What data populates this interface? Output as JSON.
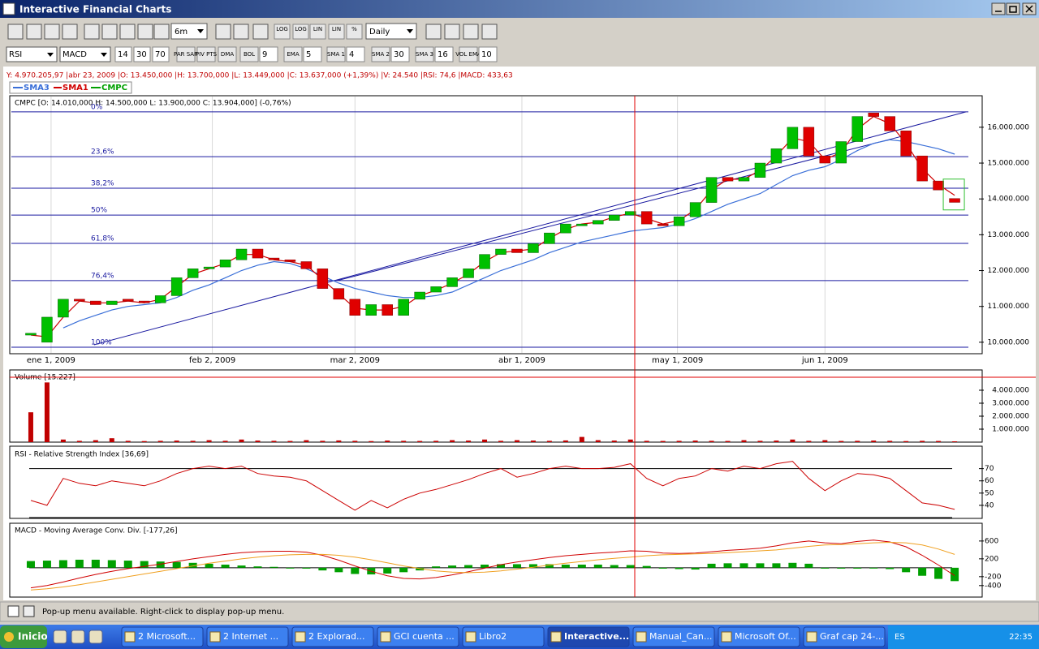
{
  "window": {
    "title": "Interactive Financial Charts"
  },
  "toolbar": {
    "period": "6m",
    "interval": "Daily",
    "scale_buttons": [
      "LOG",
      "LOG",
      "LIN",
      "LIN",
      "%"
    ]
  },
  "indicator_bar": {
    "oscillator_1": "RSI",
    "oscillator_2": "MACD",
    "rsi_params": [
      14,
      30,
      70
    ],
    "overlays": [
      {
        "label": "PAR SAR"
      },
      {
        "label": "PIV PTS"
      },
      {
        "label": "DMA"
      },
      {
        "label": "BOL",
        "param": 9
      },
      {
        "label": "EMA",
        "param": 5
      },
      {
        "label": "SMA 1",
        "param": 4
      },
      {
        "label": "SMA 2",
        "param": 30
      },
      {
        "label": "SMA 3",
        "param": 16
      },
      {
        "label": "VOL EMA",
        "param": 10
      }
    ]
  },
  "info_line": "Y: 4.970.205,97 |abr 23, 2009 |O: 13.450,000 |H: 13.700,000 |L: 13.449,000 |C: 13.637,000 (+1,39%) |V: 24.540 |RSI: 74,6 |MACD: 433,63",
  "chart_data": [
    {
      "type": "candlestick",
      "title": "CMPC [O: 14.010,000  H: 14.500,000  L: 13.900,000  C: 13.904,000] (-0,76%)",
      "name": "CMPC",
      "color": "#00a000",
      "up_color": "#00c000",
      "down_color": "#e00000",
      "xlim": [
        -1.2,
        58.7
      ],
      "xticks": [
        {
          "value": 1.25,
          "label": "ene 1, 2009"
        },
        {
          "value": 11.2,
          "label": "feb 2, 2009"
        },
        {
          "value": 20,
          "label": "mar 2, 2009"
        },
        {
          "value": 30.3,
          "label": "abr 1, 2009"
        },
        {
          "value": 39.9,
          "label": "may 1, 2009"
        },
        {
          "value": 49,
          "label": "jun 1, 2009"
        }
      ],
      "ylim": [
        9680000,
        16880000
      ],
      "yticks": [
        {
          "value": 10000000,
          "label": "10.000.000"
        },
        {
          "value": 11000000,
          "label": "11.000.000"
        },
        {
          "value": 12000000,
          "label": "12.000.000"
        },
        {
          "value": 13000000,
          "label": "13.000.000"
        },
        {
          "value": 14000000,
          "label": "14.000.000"
        },
        {
          "value": 15000000,
          "label": "15.000.000"
        },
        {
          "value": 16000000,
          "label": "16.000.000"
        }
      ],
      "grid": true,
      "open": [
        10200000,
        10000000,
        10700000,
        11200000,
        11150000,
        11050000,
        11200000,
        11150000,
        11100000,
        11300000,
        11800000,
        12050000,
        12100000,
        12300000,
        12600000,
        12350000,
        12300000,
        12250000,
        12050000,
        11500000,
        11200000,
        10750000,
        11050000,
        10750000,
        11200000,
        11400000,
        11550000,
        11800000,
        12050000,
        12450000,
        12600000,
        12500000,
        12750000,
        13050000,
        13250000,
        13300000,
        13400000,
        13550000,
        13650000,
        13300000,
        13250000,
        13500000,
        13900000,
        14600000,
        14500000,
        14600000,
        15000000,
        15400000,
        16000000,
        15200000,
        15000000,
        15600000,
        16400000,
        16300000,
        15900000,
        15200000,
        14500000,
        14010000
      ],
      "close": [
        10250000,
        10700000,
        11200000,
        11150000,
        11050000,
        11150000,
        11150000,
        11100000,
        11300000,
        11800000,
        12050000,
        12100000,
        12300000,
        12600000,
        12350000,
        12300000,
        12250000,
        12050000,
        11500000,
        11200000,
        10750000,
        11050000,
        10750000,
        11200000,
        11400000,
        11550000,
        11800000,
        12050000,
        12450000,
        12600000,
        12500000,
        12750000,
        13050000,
        13300000,
        13300000,
        13400000,
        13550000,
        13650000,
        13300000,
        13250000,
        13500000,
        13900000,
        14600000,
        14500000,
        14600000,
        15000000,
        15400000,
        16000000,
        15200000,
        15000000,
        15600000,
        16300000,
        16300000,
        15900000,
        15200000,
        14500000,
        14250000,
        13904000
      ],
      "series": [
        {
          "name": "SMA3",
          "color": "#3a6fd8",
          "values": [
            null,
            null,
            10400000,
            10600000,
            10750000,
            10900000,
            11000000,
            11050000,
            11100000,
            11250000,
            11450000,
            11600000,
            11800000,
            12000000,
            12150000,
            12250000,
            12200000,
            12050000,
            11850000,
            11650000,
            11500000,
            11400000,
            11300000,
            11250000,
            11250000,
            11300000,
            11400000,
            11600000,
            11800000,
            12000000,
            12150000,
            12300000,
            12500000,
            12650000,
            12800000,
            12900000,
            13000000,
            13100000,
            13150000,
            13200000,
            13300000,
            13450000,
            13650000,
            13850000,
            14000000,
            14150000,
            14400000,
            14650000,
            14800000,
            14900000,
            15100000,
            15350000,
            15550000,
            15650000,
            15600000,
            15500000,
            15400000,
            15250000
          ]
        },
        {
          "name": "SMA1",
          "color": "#d00000",
          "values": [
            10200000,
            10150000,
            10700000,
            11150000,
            11100000,
            11100000,
            11150000,
            11100000,
            11200000,
            11550000,
            11900000,
            12050000,
            12200000,
            12450000,
            12450000,
            12300000,
            12250000,
            12150000,
            11750000,
            11350000,
            10950000,
            10900000,
            10900000,
            11000000,
            11300000,
            11450000,
            11650000,
            11900000,
            12250000,
            12500000,
            12550000,
            12600000,
            12900000,
            13150000,
            13300000,
            13350000,
            13500000,
            13600000,
            13450000,
            13300000,
            13400000,
            13700000,
            14250000,
            14550000,
            14550000,
            14800000,
            15200000,
            15700000,
            15600000,
            15100000,
            15300000,
            15950000,
            16300000,
            16100000,
            15550000,
            14850000,
            14400000,
            14100000
          ]
        }
      ],
      "fibonacci": [
        {
          "label": "0%",
          "value": 16430000
        },
        {
          "label": "23,6%",
          "value": 15180000
        },
        {
          "label": "38,2%",
          "value": 14300000
        },
        {
          "label": "50%",
          "value": 13550000
        },
        {
          "label": "61,8%",
          "value": 12760000
        },
        {
          "label": "76,4%",
          "value": 11720000
        },
        {
          "label": "100%",
          "value": 9860000
        }
      ],
      "fib_color": "#1a1aa0",
      "trendlines": [
        {
          "x": [
            3.9,
            57.7
          ],
          "y": [
            9930000,
            16430000
          ]
        },
        {
          "x": [
            18.9,
            54.2
          ],
          "y": [
            11720000,
            15800000
          ]
        }
      ]
    },
    {
      "type": "bar",
      "title": "Volume [15.227]",
      "color": "#c00000",
      "ylim": [
        0,
        5500000
      ],
      "yticks": [
        {
          "value": 1000000,
          "label": "1.000.000"
        },
        {
          "value": 2000000,
          "label": "2.000.000"
        },
        {
          "value": 3000000,
          "label": "3.000.000"
        },
        {
          "value": 4000000,
          "label": "4.000.000"
        }
      ],
      "values": [
        2300000,
        4600000,
        200000,
        100000,
        150000,
        300000,
        100000,
        80000,
        100000,
        120000,
        100000,
        150000,
        100000,
        200000,
        120000,
        100000,
        90000,
        150000,
        100000,
        130000,
        100000,
        80000,
        120000,
        100000,
        90000,
        100000,
        150000,
        120000,
        200000,
        100000,
        150000,
        120000,
        100000,
        130000,
        400000,
        150000,
        120000,
        200000,
        100000,
        90000,
        100000,
        120000,
        100000,
        90000,
        150000,
        100000,
        120000,
        200000,
        100000,
        150000,
        90000,
        100000,
        120000,
        100000,
        80000,
        100000,
        90000,
        15227
      ]
    },
    {
      "type": "line",
      "title": "RSI - Relative Strength Index [36,69]",
      "color": "#cc0000",
      "ylim": [
        30,
        87
      ],
      "yticks": [
        40,
        50,
        60,
        70
      ],
      "levels": [
        70,
        30
      ],
      "values": [
        44,
        40,
        62,
        58,
        56,
        60,
        58,
        56,
        60,
        66,
        70,
        72,
        70,
        72,
        66,
        64,
        63,
        60,
        52,
        44,
        36,
        44,
        38,
        45,
        50,
        53,
        57,
        61,
        66,
        70,
        63,
        66,
        70,
        72,
        70,
        70,
        71,
        74,
        62,
        56,
        62,
        64,
        70,
        68,
        72,
        70,
        74,
        76,
        62,
        52,
        60,
        66,
        65,
        62,
        52,
        42,
        40,
        36.69
      ]
    },
    {
      "type": "macd",
      "title": "MACD - Moving Average Conv. Div. [-177,26]",
      "ylim": [
        -640,
        980
      ],
      "yticks": [
        -400,
        -200,
        200,
        600
      ],
      "series": [
        {
          "color": "#d00000",
          "values": [
            -450,
            -400,
            -320,
            -230,
            -150,
            -80,
            -20,
            30,
            80,
            140,
            200,
            250,
            300,
            340,
            360,
            370,
            370,
            350,
            280,
            170,
            40,
            -80,
            -180,
            -240,
            -250,
            -220,
            -160,
            -90,
            -10,
            70,
            130,
            180,
            230,
            270,
            300,
            330,
            350,
            380,
            370,
            330,
            320,
            330,
            360,
            390,
            410,
            440,
            490,
            560,
            600,
            560,
            540,
            590,
            620,
            580,
            470,
            280,
            60,
            -177.26
          ]
        },
        {
          "color": "#f0a020",
          "values": [
            -500,
            -470,
            -430,
            -380,
            -320,
            -260,
            -200,
            -140,
            -80,
            -20,
            40,
            100,
            150,
            200,
            240,
            270,
            290,
            300,
            300,
            280,
            240,
            180,
            110,
            40,
            -20,
            -70,
            -100,
            -110,
            -100,
            -70,
            -30,
            10,
            60,
            100,
            140,
            180,
            210,
            240,
            270,
            290,
            300,
            310,
            320,
            340,
            360,
            380,
            400,
            440,
            480,
            510,
            520,
            540,
            560,
            570,
            560,
            510,
            420,
            300
          ]
        }
      ],
      "histogram": {
        "color": "#00a000",
        "values": [
          150,
          160,
          170,
          180,
          180,
          170,
          160,
          150,
          140,
          130,
          110,
          90,
          70,
          50,
          30,
          20,
          0,
          -20,
          -60,
          -100,
          -140,
          -150,
          -130,
          -100,
          -60,
          30,
          50,
          60,
          70,
          80,
          80,
          80,
          80,
          70,
          70,
          70,
          60,
          60,
          40,
          -20,
          -30,
          -40,
          90,
          100,
          100,
          100,
          100,
          110,
          90,
          -20,
          -20,
          -20,
          -10,
          -30,
          -100,
          -180,
          -250,
          -300
        ]
      }
    }
  ],
  "status_bar": {
    "text": "Pop-up menu available. Right-click to display pop-up menu."
  },
  "taskbar": {
    "start": "Inicio",
    "windows": [
      "2 Microsoft...",
      "2 Internet ...",
      "2 Explorad...",
      "GCI cuenta ...",
      "Libro2",
      "Interactive...",
      "Manual_Can...",
      "Microsoft Of...",
      "Graf cap 24-..."
    ],
    "language": "ES",
    "clock": "22:35"
  }
}
